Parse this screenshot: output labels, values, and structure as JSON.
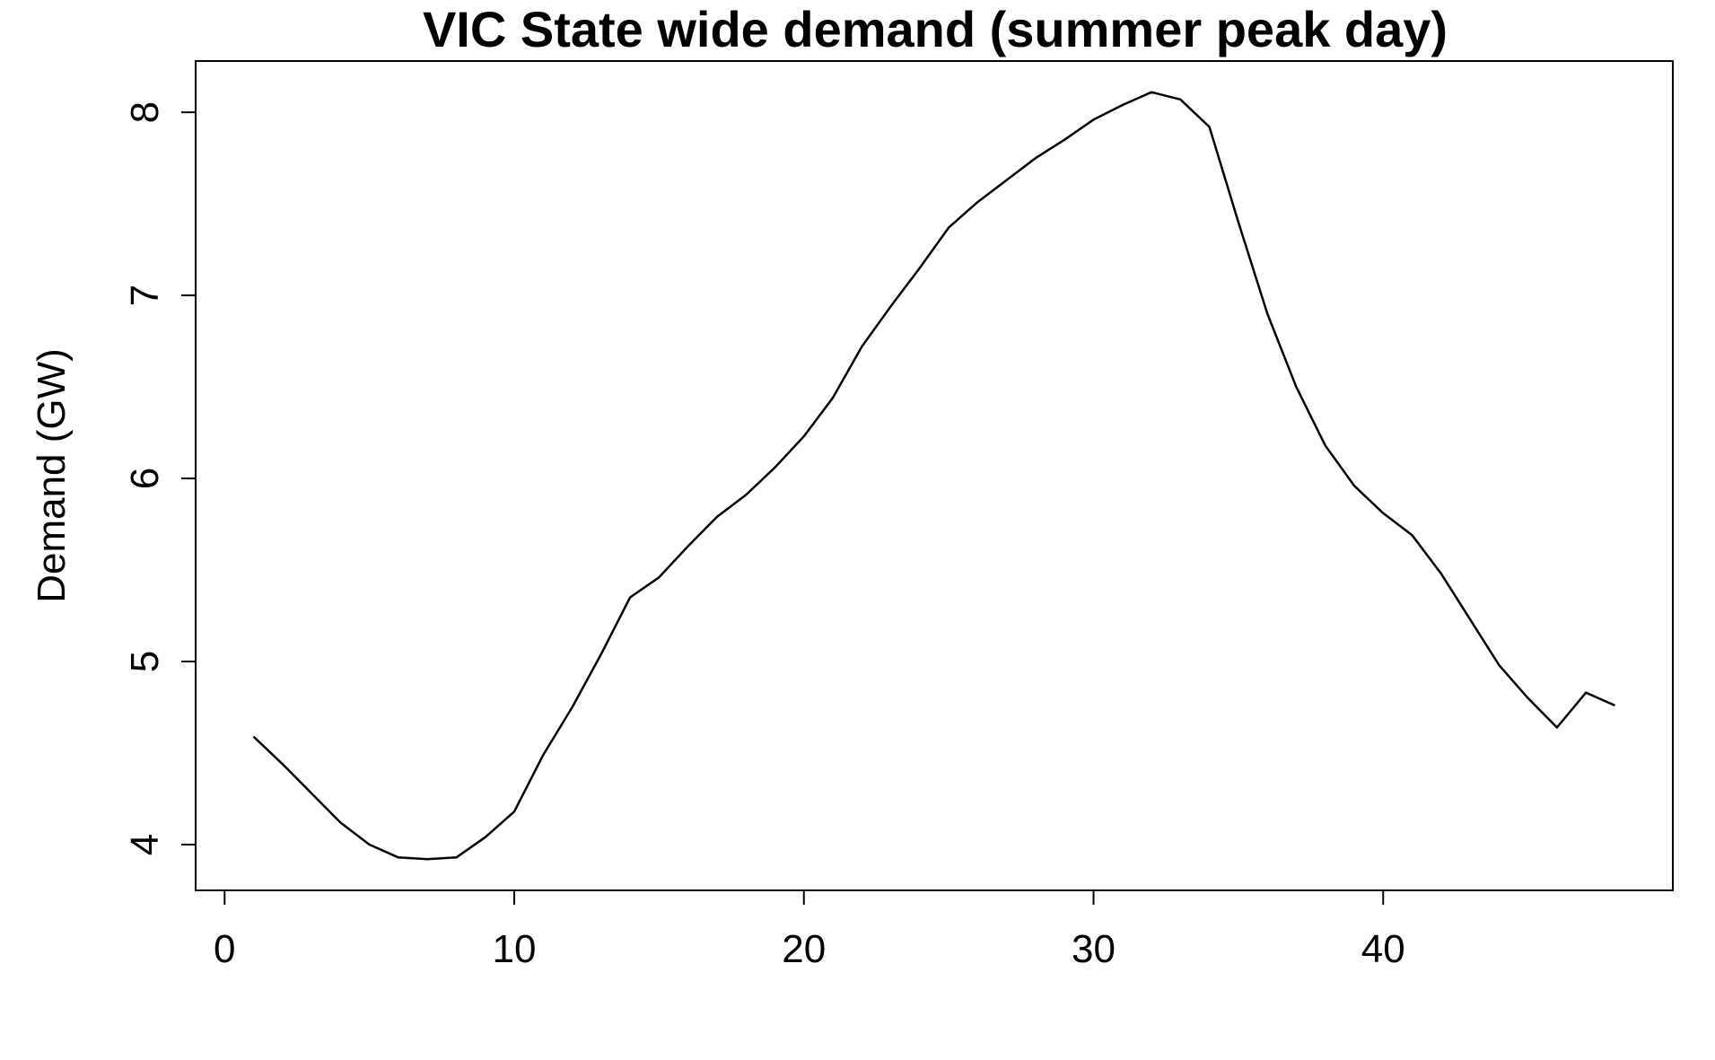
{
  "chart_data": {
    "type": "line",
    "title": "VIC State wide demand (summer peak day)",
    "xlabel": "",
    "ylabel": "Demand (GW)",
    "xlim": [
      -1,
      50
    ],
    "ylim": [
      3.75,
      8.28
    ],
    "xticks": [
      0,
      10,
      20,
      30,
      40
    ],
    "yticks": [
      4,
      5,
      6,
      7,
      8
    ],
    "grid": false,
    "line_color": "#000000",
    "series": [
      {
        "name": "Demand",
        "x": [
          1,
          2,
          3,
          4,
          5,
          6,
          7,
          8,
          9,
          10,
          11,
          12,
          13,
          14,
          15,
          16,
          17,
          18,
          19,
          20,
          21,
          22,
          23,
          24,
          25,
          26,
          27,
          28,
          29,
          30,
          31,
          32,
          33,
          34,
          35,
          36,
          37,
          38,
          39,
          40,
          41,
          42,
          43,
          44,
          45,
          46,
          47,
          48
        ],
        "values": [
          4.59,
          4.44,
          4.28,
          4.12,
          4.0,
          3.93,
          3.92,
          3.93,
          4.04,
          4.18,
          4.49,
          4.75,
          5.04,
          5.35,
          5.46,
          5.63,
          5.79,
          5.91,
          6.06,
          6.23,
          6.44,
          6.72,
          6.94,
          7.15,
          7.37,
          7.51,
          7.63,
          7.75,
          7.85,
          7.96,
          8.04,
          8.11,
          8.07,
          7.92,
          7.4,
          6.9,
          6.5,
          6.18,
          5.96,
          5.81,
          5.69,
          5.48,
          5.23,
          4.98,
          4.8,
          4.64,
          4.83,
          4.76
        ]
      }
    ]
  }
}
